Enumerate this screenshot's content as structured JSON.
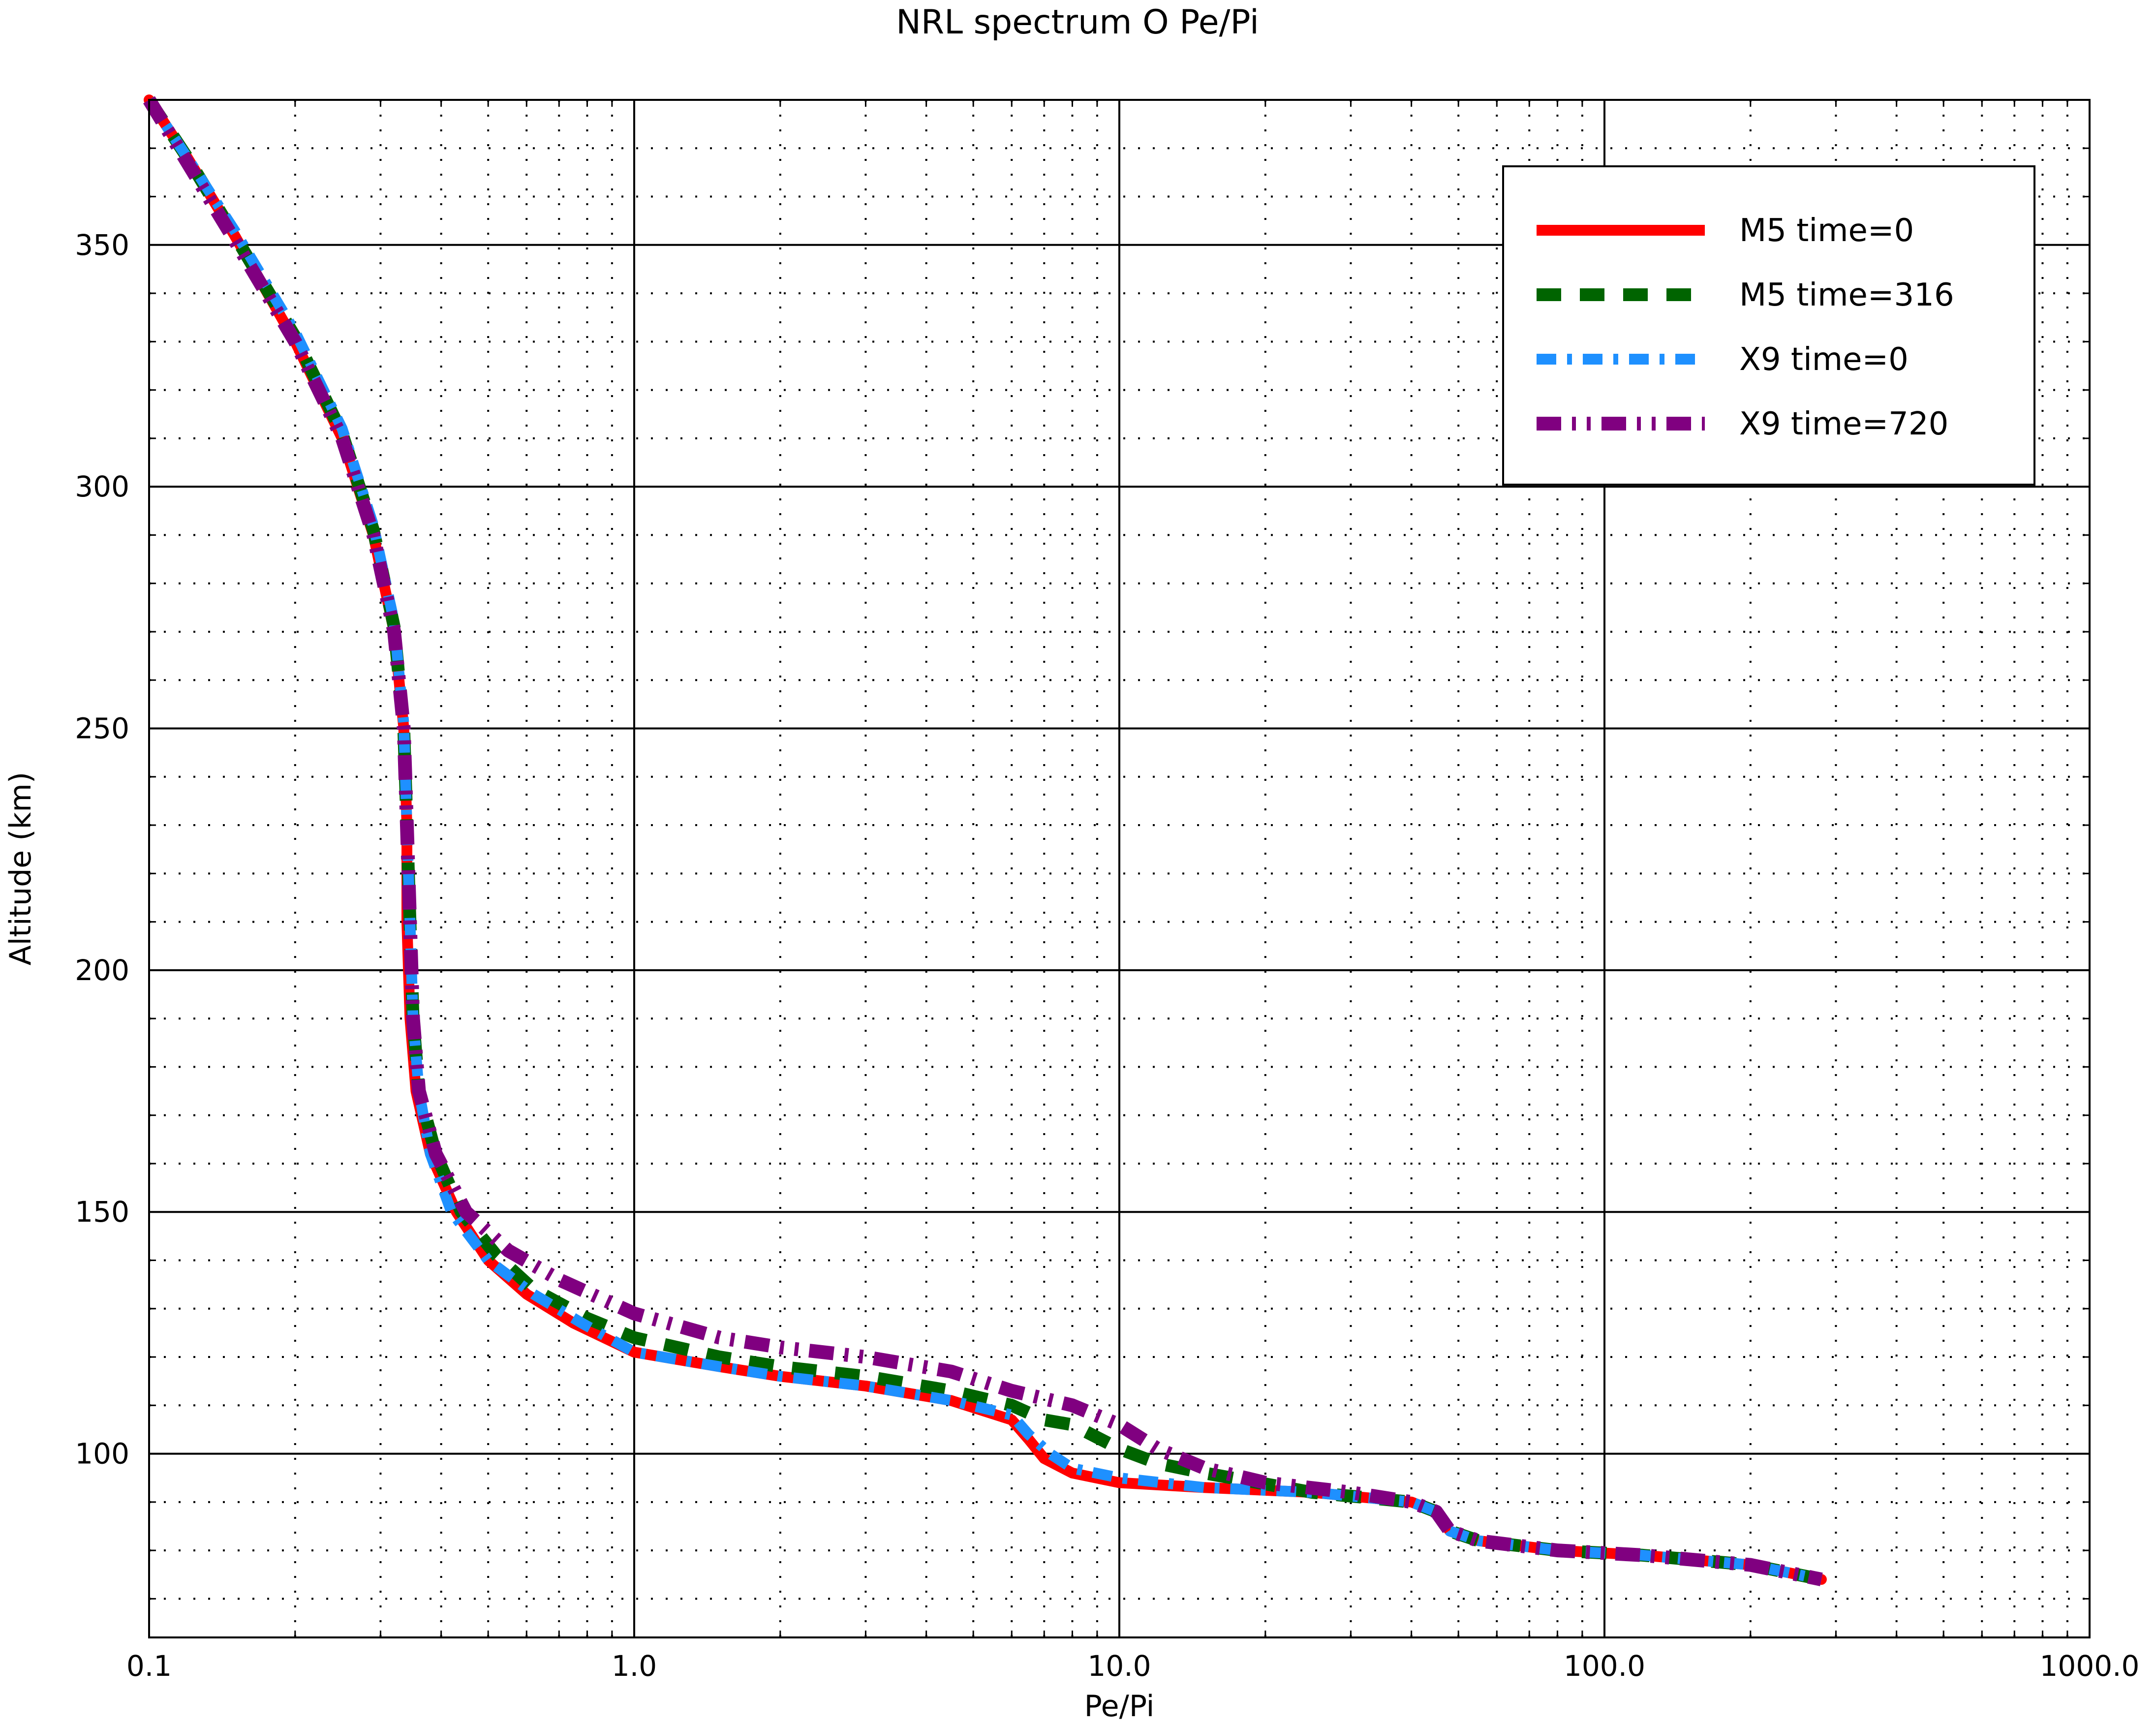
{
  "chart_data": {
    "type": "line",
    "title": "NRL spectrum O Pe/Pi",
    "xlabel": "Pe/Pi",
    "ylabel": "Altitude (km)",
    "xscale": "log",
    "xlim": [
      0.1,
      1000.0
    ],
    "ylim": [
      62,
      380
    ],
    "grid": true,
    "legend_position": "top-right",
    "x_major_ticks": [
      0.1,
      1.0,
      10.0,
      100.0,
      1000.0
    ],
    "x_tick_labels": [
      "0.1",
      "1.0",
      "10.0",
      "100.0",
      "1000.0"
    ],
    "y_major_ticks": [
      100,
      150,
      200,
      250,
      300,
      350
    ],
    "y_tick_labels": [
      "100",
      "150",
      "200",
      "250",
      "300",
      "350"
    ],
    "series": [
      {
        "name": "M5 time=0",
        "color": "#ff0000",
        "style": "solid",
        "points": [
          [
            0.1,
            380
          ],
          [
            0.12,
            368
          ],
          [
            0.15,
            352
          ],
          [
            0.2,
            330
          ],
          [
            0.25,
            310
          ],
          [
            0.29,
            290
          ],
          [
            0.32,
            270
          ],
          [
            0.335,
            250
          ],
          [
            0.34,
            230
          ],
          [
            0.34,
            210
          ],
          [
            0.345,
            190
          ],
          [
            0.355,
            175
          ],
          [
            0.38,
            162
          ],
          [
            0.43,
            150
          ],
          [
            0.5,
            140
          ],
          [
            0.6,
            133
          ],
          [
            0.75,
            127
          ],
          [
            1.0,
            121
          ],
          [
            1.5,
            118
          ],
          [
            2.0,
            116
          ],
          [
            3.0,
            114
          ],
          [
            4.5,
            111
          ],
          [
            6.0,
            107
          ],
          [
            6.5,
            103
          ],
          [
            7.0,
            99
          ],
          [
            8.0,
            96
          ],
          [
            10.0,
            94
          ],
          [
            15.0,
            93
          ],
          [
            25.0,
            92
          ],
          [
            40.0,
            90
          ],
          [
            45.0,
            88
          ],
          [
            48.0,
            84
          ],
          [
            55.0,
            82
          ],
          [
            80.0,
            80
          ],
          [
            120.0,
            79
          ],
          [
            200.0,
            77
          ],
          [
            280.0,
            74
          ]
        ]
      },
      {
        "name": "M5 time=316",
        "color": "#006400",
        "style": "dashed",
        "points": [
          [
            0.1,
            380
          ],
          [
            0.12,
            368
          ],
          [
            0.15,
            352
          ],
          [
            0.2,
            331
          ],
          [
            0.25,
            311
          ],
          [
            0.29,
            291
          ],
          [
            0.32,
            271
          ],
          [
            0.335,
            250
          ],
          [
            0.34,
            230
          ],
          [
            0.345,
            210
          ],
          [
            0.35,
            190
          ],
          [
            0.36,
            175
          ],
          [
            0.39,
            162
          ],
          [
            0.44,
            150
          ],
          [
            0.52,
            141
          ],
          [
            0.62,
            134
          ],
          [
            0.8,
            128
          ],
          [
            1.0,
            124
          ],
          [
            1.5,
            120
          ],
          [
            2.0,
            118
          ],
          [
            3.0,
            116
          ],
          [
            4.5,
            113
          ],
          [
            6.0,
            110
          ],
          [
            7.0,
            107
          ],
          [
            8.0,
            106
          ],
          [
            10.0,
            101
          ],
          [
            12.0,
            98
          ],
          [
            15.0,
            96
          ],
          [
            25.0,
            92
          ],
          [
            40.0,
            90
          ],
          [
            45.0,
            88
          ],
          [
            48.0,
            84
          ],
          [
            55.0,
            82
          ],
          [
            80.0,
            80
          ],
          [
            120.0,
            79
          ],
          [
            200.0,
            77
          ],
          [
            280.0,
            74
          ]
        ]
      },
      {
        "name": "X9 time=0",
        "color": "#1e90ff",
        "style": "dashdot",
        "points": [
          [
            0.1,
            380
          ],
          [
            0.12,
            368
          ],
          [
            0.15,
            353
          ],
          [
            0.2,
            332
          ],
          [
            0.25,
            312
          ],
          [
            0.29,
            292
          ],
          [
            0.32,
            272
          ],
          [
            0.335,
            251
          ],
          [
            0.34,
            230
          ],
          [
            0.345,
            210
          ],
          [
            0.35,
            190
          ],
          [
            0.36,
            175
          ],
          [
            0.38,
            162
          ],
          [
            0.42,
            150
          ],
          [
            0.5,
            140
          ],
          [
            0.62,
            133
          ],
          [
            0.78,
            127
          ],
          [
            1.0,
            121
          ],
          [
            1.5,
            118
          ],
          [
            2.0,
            116
          ],
          [
            3.0,
            114
          ],
          [
            4.5,
            111
          ],
          [
            6.0,
            108
          ],
          [
            6.5,
            104
          ],
          [
            7.2,
            100
          ],
          [
            8.0,
            97
          ],
          [
            10.0,
            95
          ],
          [
            15.0,
            93
          ],
          [
            25.0,
            92
          ],
          [
            40.0,
            90
          ],
          [
            45.0,
            88
          ],
          [
            48.0,
            84
          ],
          [
            55.0,
            82
          ],
          [
            80.0,
            80
          ],
          [
            120.0,
            79
          ],
          [
            200.0,
            77
          ],
          [
            280.0,
            74
          ]
        ]
      },
      {
        "name": "X9 time=720",
        "color": "#800080",
        "style": "dashdotdot",
        "points": [
          [
            0.1,
            380
          ],
          [
            0.12,
            367
          ],
          [
            0.15,
            351
          ],
          [
            0.2,
            330
          ],
          [
            0.25,
            310
          ],
          [
            0.29,
            290
          ],
          [
            0.32,
            270
          ],
          [
            0.335,
            250
          ],
          [
            0.34,
            230
          ],
          [
            0.345,
            210
          ],
          [
            0.35,
            190
          ],
          [
            0.36,
            175
          ],
          [
            0.39,
            162
          ],
          [
            0.45,
            150
          ],
          [
            0.55,
            142
          ],
          [
            0.7,
            136
          ],
          [
            1.0,
            129
          ],
          [
            1.5,
            124
          ],
          [
            2.0,
            122
          ],
          [
            3.0,
            120
          ],
          [
            4.5,
            117
          ],
          [
            6.0,
            113
          ],
          [
            8.0,
            110
          ],
          [
            10.0,
            106
          ],
          [
            12.0,
            101
          ],
          [
            15.0,
            97
          ],
          [
            20.0,
            94
          ],
          [
            30.0,
            92
          ],
          [
            40.0,
            90
          ],
          [
            45.0,
            88
          ],
          [
            48.0,
            84
          ],
          [
            55.0,
            82
          ],
          [
            80.0,
            80
          ],
          [
            120.0,
            79
          ],
          [
            200.0,
            77
          ],
          [
            280.0,
            74
          ]
        ]
      }
    ]
  }
}
